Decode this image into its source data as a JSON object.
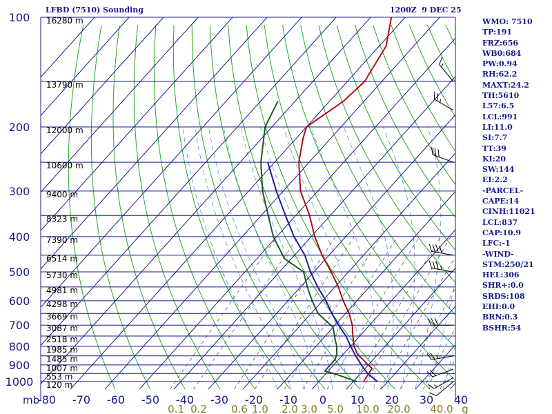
{
  "header": {
    "station_title": "LFBD (7510) Sounding",
    "time_title": "1200Z  9 DEC 25"
  },
  "indices": [
    "WMO: 7510",
    "TP:191",
    "FRZ:656",
    "WB0:684",
    "PW:0.94",
    "RH:62.2",
    "MAXT:24.2",
    "TH:5610",
    "L57:6.5",
    "LCL:991",
    "LI:11.0",
    "SI:7.7",
    "TT:39",
    "KI:20",
    "SW:144",
    "EI:2.2",
    "-PARCEL-",
    "CAPE:14",
    "CINH:11021",
    "LCL:837",
    "CAP:10.9",
    "LFC:-1",
    "-WIND-",
    "STM:250/21",
    "HEL:306",
    "SHR+:0.0",
    "SRDS:108",
    "EHI:0.0",
    "BRN:0.3",
    "BSHR:54"
  ],
  "colors": {
    "grid": "#1a1a8c",
    "dry_adiabat": "#22aa22",
    "moist_adiabat": "#5b8fd0",
    "mixing_ratio": "#555555",
    "temperature": "#b01010",
    "dewpoint": "#1a5a1a",
    "parcel": "#1a1aaa",
    "mixing_label": "#8a7a1a",
    "axis_label": "#1a1a8c",
    "height_label": "#000000",
    "wind_barb": "#000000"
  },
  "chart_data": {
    "type": "skew-t log-p sounding",
    "pressure_axis": {
      "label": "mb",
      "ticks": [
        100,
        200,
        300,
        400,
        500,
        600,
        700,
        800,
        900,
        1000
      ],
      "range": [
        100,
        1050
      ],
      "scale": "log"
    },
    "temperature_axis": {
      "ticks": [
        -80,
        -70,
        -60,
        -50,
        -40,
        -30,
        -20,
        -10,
        0,
        10,
        20,
        30,
        40
      ],
      "tick_labels": [
        "-80",
        "-70",
        "-60",
        "-50",
        "-40",
        "-30",
        "-20",
        "-10",
        "0",
        "10",
        "20",
        "30",
        "40"
      ],
      "unit": "°C"
    },
    "mixing_ratio_labels": [
      "0.1",
      "0.2",
      "0.6",
      "1.0",
      "2.0",
      "3.0",
      "5.0",
      "10.0",
      "20.0",
      "40.0",
      "g"
    ],
    "height_labels": [
      {
        "p": 100,
        "text": "16280 m"
      },
      {
        "p": 150,
        "text": "13790 m"
      },
      {
        "p": 200,
        "text": "12000 m"
      },
      {
        "p": 250,
        "text": "10600 m"
      },
      {
        "p": 300,
        "text": "9400 m"
      },
      {
        "p": 350,
        "text": "8323 m"
      },
      {
        "p": 400,
        "text": "7390 m"
      },
      {
        "p": 450,
        "text": "6514 m"
      },
      {
        "p": 500,
        "text": "5730 m"
      },
      {
        "p": 550,
        "text": "4981 m"
      },
      {
        "p": 600,
        "text": "4298 m"
      },
      {
        "p": 650,
        "text": "3669 m"
      },
      {
        "p": 700,
        "text": "3087 m"
      },
      {
        "p": 750,
        "text": "2518 m"
      },
      {
        "p": 800,
        "text": "1985 m"
      },
      {
        "p": 850,
        "text": "1485 m"
      },
      {
        "p": 900,
        "text": "1007 m"
      },
      {
        "p": 950,
        "text": "553 m"
      },
      {
        "p": 1000,
        "text": "120 m"
      }
    ],
    "series": [
      {
        "key": "temperature",
        "points": [
          [
            1000,
            13
          ],
          [
            960,
            12.5
          ],
          [
            920,
            12
          ],
          [
            880,
            8
          ],
          [
            840,
            4
          ],
          [
            800,
            1
          ],
          [
            750,
            -2
          ],
          [
            700,
            -5
          ],
          [
            650,
            -9
          ],
          [
            600,
            -14
          ],
          [
            550,
            -19
          ],
          [
            500,
            -25
          ],
          [
            450,
            -32
          ],
          [
            400,
            -39
          ],
          [
            350,
            -46
          ],
          [
            300,
            -55
          ],
          [
            250,
            -63
          ],
          [
            215,
            -68
          ],
          [
            200,
            -70
          ],
          [
            170,
            -66
          ],
          [
            150,
            -65
          ],
          [
            120,
            -68
          ],
          [
            100,
            -74
          ]
        ]
      },
      {
        "key": "dewpoint",
        "points": [
          [
            1000,
            11
          ],
          [
            960,
            4
          ],
          [
            935,
            -1
          ],
          [
            900,
            -1
          ],
          [
            870,
            -1
          ],
          [
            840,
            -2
          ],
          [
            800,
            -4
          ],
          [
            770,
            -6
          ],
          [
            710,
            -10
          ],
          [
            650,
            -18
          ],
          [
            600,
            -23
          ],
          [
            550,
            -28
          ],
          [
            500,
            -33
          ],
          [
            460,
            -42
          ],
          [
            400,
            -51
          ],
          [
            350,
            -58
          ],
          [
            300,
            -66
          ],
          [
            250,
            -74
          ],
          [
            200,
            -82
          ],
          [
            170,
            -85
          ]
        ]
      },
      {
        "key": "parcel",
        "points": [
          [
            1000,
            17
          ],
          [
            950,
            12
          ],
          [
            900,
            8
          ],
          [
            850,
            4
          ],
          [
            800,
            0
          ],
          [
            750,
            -4
          ],
          [
            700,
            -9
          ],
          [
            650,
            -14
          ],
          [
            600,
            -19
          ],
          [
            550,
            -25
          ],
          [
            500,
            -31
          ],
          [
            450,
            -37
          ],
          [
            400,
            -45
          ],
          [
            350,
            -53
          ],
          [
            300,
            -62
          ],
          [
            250,
            -72
          ]
        ]
      }
    ],
    "wind_barbs": [
      {
        "p": 1000,
        "dir": 230,
        "spd": 10
      },
      {
        "p": 975,
        "dir": 240,
        "spd": 15
      },
      {
        "p": 925,
        "dir": 250,
        "spd": 20
      },
      {
        "p": 850,
        "dir": 260,
        "spd": 25
      },
      {
        "p": 700,
        "dir": 270,
        "spd": 30
      },
      {
        "p": 500,
        "dir": 280,
        "spd": 35
      },
      {
        "p": 450,
        "dir": 280,
        "spd": 40
      },
      {
        "p": 250,
        "dir": 290,
        "spd": 30
      },
      {
        "p": 180,
        "dir": 300,
        "spd": 25
      },
      {
        "p": 150,
        "dir": 320,
        "spd": 15
      }
    ]
  }
}
